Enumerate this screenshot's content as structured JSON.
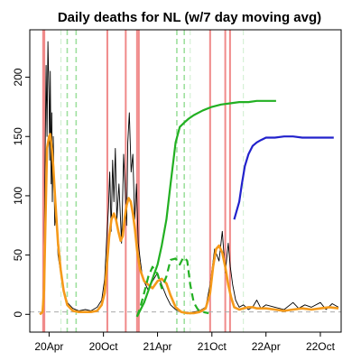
{
  "chart_data": {
    "type": "line",
    "title": "Daily deaths for NL (w/7 day moving avg)",
    "xlabel": "",
    "ylabel": "",
    "ylim": [
      -15,
      240
    ],
    "yticks": [
      0,
      50,
      100,
      150,
      200
    ],
    "x_ticks": [
      {
        "label": "20Apr",
        "date": "2020-04-01"
      },
      {
        "label": "20Oct",
        "date": "2020-10-01"
      },
      {
        "label": "21Apr",
        "date": "2021-04-01"
      },
      {
        "label": "21Oct",
        "date": "2021-10-01"
      },
      {
        "label": "22Apr",
        "date": "2022-04-01"
      },
      {
        "label": "22Oct",
        "date": "2022-10-01"
      }
    ],
    "xlim": [
      "2020-01-27",
      "2022-12-10"
    ],
    "grid": false,
    "legend": "none",
    "reference_hline": 2,
    "vertical_lines_red": [
      "2020-03-12",
      "2020-03-16",
      "2020-10-14",
      "2020-12-15",
      "2021-01-22",
      "2021-01-28",
      "2021-09-25",
      "2021-11-15",
      "2021-12-01"
    ],
    "vertical_lines_green_dashed": [
      "2020-06-01",
      "2020-07-01",
      "2021-06-05",
      "2021-06-30"
    ],
    "vertical_lines_green_faint_dashed": [
      "2020-05-11",
      "2021-07-20",
      "2022-01-15"
    ],
    "series": [
      {
        "style": "black-thin",
        "x": [
          "2020-03-01",
          "2020-03-08",
          "2020-03-12",
          "2020-03-15",
          "2020-03-18",
          "2020-03-22",
          "2020-03-25",
          "2020-03-28",
          "2020-04-01",
          "2020-04-03",
          "2020-04-05",
          "2020-04-08",
          "2020-04-10",
          "2020-04-12",
          "2020-04-15",
          "2020-04-20",
          "2020-04-25",
          "2020-05-01",
          "2020-05-10",
          "2020-05-20",
          "2020-06-01",
          "2020-06-20",
          "2020-07-10",
          "2020-08-01",
          "2020-08-20",
          "2020-09-10",
          "2020-09-25",
          "2020-10-05",
          "2020-10-12",
          "2020-10-18",
          "2020-10-22",
          "2020-10-27",
          "2020-11-01",
          "2020-11-05",
          "2020-11-10",
          "2020-11-15",
          "2020-11-22",
          "2020-12-01",
          "2020-12-08",
          "2020-12-14",
          "2020-12-18",
          "2020-12-22",
          "2020-12-27",
          "2021-01-02",
          "2021-01-08",
          "2021-01-14",
          "2021-01-20",
          "2021-01-26",
          "2021-02-02",
          "2021-02-10",
          "2021-02-20",
          "2021-03-01",
          "2021-03-15",
          "2021-04-01",
          "2021-04-15",
          "2021-05-01",
          "2021-05-15",
          "2021-06-01",
          "2021-06-20",
          "2021-07-10",
          "2021-08-01",
          "2021-08-20",
          "2021-09-10",
          "2021-09-25",
          "2021-10-10",
          "2021-10-25",
          "2021-11-05",
          "2021-11-15",
          "2021-11-25",
          "2021-12-02",
          "2021-12-10",
          "2021-12-20",
          "2022-01-01",
          "2022-01-15",
          "2022-02-01",
          "2022-02-15",
          "2022-03-01",
          "2022-03-15",
          "2022-04-01",
          "2022-05-01",
          "2022-06-01",
          "2022-07-01",
          "2022-07-20",
          "2022-08-10",
          "2022-09-01",
          "2022-10-01",
          "2022-10-20",
          "2022-11-10",
          "2022-12-01"
        ],
        "values": [
          0,
          1,
          5,
          40,
          120,
          210,
          150,
          230,
          180,
          130,
          205,
          110,
          170,
          95,
          150,
          75,
          90,
          50,
          35,
          18,
          10,
          5,
          3,
          4,
          3,
          6,
          12,
          30,
          65,
          90,
          120,
          70,
          130,
          95,
          140,
          80,
          110,
          60,
          135,
          100,
          75,
          145,
          170,
          120,
          135,
          80,
          110,
          60,
          45,
          30,
          25,
          20,
          28,
          35,
          25,
          15,
          8,
          4,
          2,
          1,
          2,
          3,
          6,
          25,
          55,
          45,
          70,
          35,
          60,
          40,
          25,
          12,
          6,
          8,
          4,
          6,
          12,
          5,
          8,
          6,
          4,
          10,
          5,
          8,
          6,
          10,
          4,
          9,
          6
        ]
      },
      {
        "style": "orange-thick",
        "name": "7 day moving avg",
        "x": [
          "2020-03-01",
          "2020-03-10",
          "2020-03-15",
          "2020-03-20",
          "2020-03-25",
          "2020-04-01",
          "2020-04-05",
          "2020-04-10",
          "2020-04-15",
          "2020-04-22",
          "2020-05-01",
          "2020-05-10",
          "2020-05-20",
          "2020-06-01",
          "2020-06-20",
          "2020-07-10",
          "2020-08-01",
          "2020-08-20",
          "2020-09-10",
          "2020-09-25",
          "2020-10-05",
          "2020-10-12",
          "2020-10-20",
          "2020-10-28",
          "2020-11-05",
          "2020-11-12",
          "2020-11-20",
          "2020-11-28",
          "2020-12-05",
          "2020-12-12",
          "2020-12-18",
          "2020-12-25",
          "2021-01-01",
          "2021-01-08",
          "2021-01-15",
          "2021-01-22",
          "2021-02-01",
          "2021-02-15",
          "2021-03-01",
          "2021-03-15",
          "2021-04-01",
          "2021-04-15",
          "2021-05-01",
          "2021-05-15",
          "2021-06-01",
          "2021-06-20",
          "2021-07-10",
          "2021-08-01",
          "2021-08-20",
          "2021-09-10",
          "2021-09-25",
          "2021-10-05",
          "2021-10-15",
          "2021-10-25",
          "2021-11-05",
          "2021-11-15",
          "2021-11-25",
          "2021-12-05",
          "2021-12-15",
          "2022-01-01",
          "2022-01-15",
          "2022-02-01",
          "2022-02-15",
          "2022-03-01",
          "2022-04-01",
          "2022-05-01",
          "2022-06-01",
          "2022-07-01",
          "2022-08-01",
          "2022-09-01",
          "2022-10-01",
          "2022-11-01",
          "2022-12-01"
        ],
        "values": [
          0,
          2,
          20,
          80,
          140,
          150,
          152,
          140,
          125,
          95,
          60,
          38,
          20,
          8,
          3,
          2,
          2,
          2,
          3,
          8,
          18,
          40,
          65,
          80,
          85,
          80,
          70,
          62,
          66,
          82,
          92,
          98,
          95,
          85,
          72,
          55,
          38,
          28,
          25,
          22,
          28,
          30,
          26,
          16,
          6,
          2,
          1,
          1,
          2,
          5,
          18,
          40,
          55,
          58,
          52,
          40,
          25,
          14,
          6,
          4,
          5,
          6,
          6,
          5,
          5,
          4,
          3,
          4,
          5,
          4,
          5,
          6,
          5
        ]
      },
      {
        "style": "green-solid",
        "x": [
          "2021-01-22",
          "2021-02-01",
          "2021-02-15",
          "2021-03-01",
          "2021-03-15",
          "2021-04-01",
          "2021-04-15",
          "2021-05-01",
          "2021-05-15",
          "2021-06-01",
          "2021-06-15",
          "2021-07-01",
          "2021-07-15",
          "2021-08-01",
          "2021-09-01",
          "2021-10-01",
          "2021-11-01",
          "2021-12-01",
          "2022-01-01",
          "2022-02-01",
          "2022-03-01",
          "2022-04-01",
          "2022-05-05"
        ],
        "values": [
          -2,
          3,
          10,
          20,
          30,
          42,
          58,
          80,
          110,
          145,
          158,
          162,
          165,
          168,
          172,
          175,
          177,
          178,
          179,
          179,
          180,
          180,
          180
        ]
      },
      {
        "style": "green-dashed",
        "x": [
          "2021-01-22",
          "2021-02-01",
          "2021-02-15",
          "2021-03-01",
          "2021-03-15",
          "2021-04-01",
          "2021-04-15",
          "2021-05-01",
          "2021-05-15",
          "2021-06-01",
          "2021-06-15",
          "2021-06-25",
          "2021-07-01",
          "2021-07-10",
          "2021-07-20",
          "2021-08-01",
          "2021-08-15",
          "2021-09-01",
          "2021-09-20"
        ],
        "values": [
          -2,
          5,
          18,
          32,
          40,
          34,
          22,
          32,
          46,
          47,
          42,
          47,
          48,
          45,
          25,
          10,
          4,
          2,
          1
        ]
      },
      {
        "style": "blue-solid",
        "x": [
          "2021-12-15",
          "2022-01-01",
          "2022-01-10",
          "2022-01-20",
          "2022-02-01",
          "2022-02-15",
          "2022-03-01",
          "2022-03-15",
          "2022-04-01",
          "2022-05-01",
          "2022-06-01",
          "2022-07-01",
          "2022-08-01",
          "2022-09-01",
          "2022-10-15",
          "2022-11-15"
        ],
        "values": [
          80,
          95,
          110,
          125,
          135,
          142,
          145,
          147,
          149,
          149,
          150,
          150,
          149,
          149,
          149,
          149
        ]
      }
    ]
  }
}
